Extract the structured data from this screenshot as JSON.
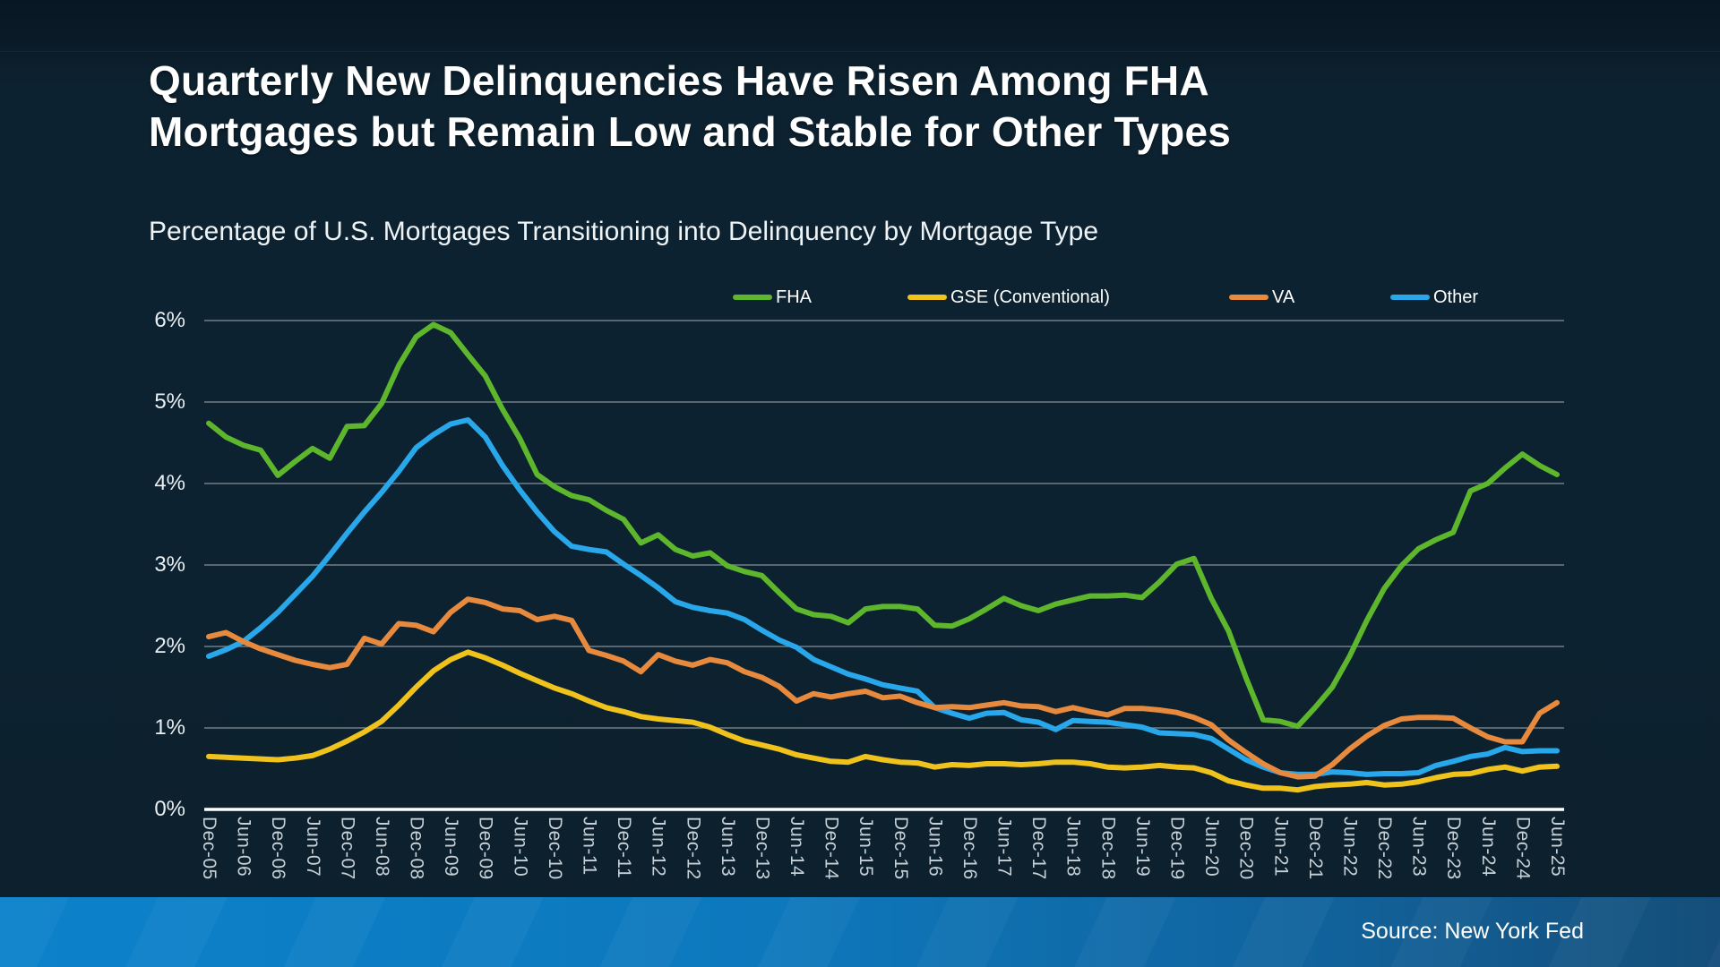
{
  "page": {
    "title_line1": "Quarterly New Delinquencies Have Risen Among FHA",
    "title_line2": "Mortgages but Remain Low and Stable for Other Types",
    "subtitle": "Percentage of U.S. Mortgages Transitioning into Delinquency by Mortgage Type",
    "source": "Source: New York Fed"
  },
  "chart_data": {
    "type": "line",
    "title": "Quarterly New Delinquencies Have Risen Among FHA Mortgages but Remain Low and Stable for Other Types",
    "subtitle": "Percentage of U.S. Mortgages Transitioning into Delinquency by Mortgage Type",
    "unit": "percent",
    "ylim": [
      0,
      6
    ],
    "grid": "horizontal",
    "legend_position": "top",
    "y_tick_labels": [
      "0%",
      "1%",
      "2%",
      "3%",
      "4%",
      "5%",
      "6%"
    ],
    "x_tick_labels": [
      "Dec-05",
      "Jun-06",
      "Dec-06",
      "Jun-07",
      "Dec-07",
      "Jun-08",
      "Dec-08",
      "Jun-09",
      "Dec-09",
      "Jun-10",
      "Dec-10",
      "Jun-11",
      "Dec-11",
      "Jun-12",
      "Dec-12",
      "Jun-13",
      "Dec-13",
      "Jun-14",
      "Dec-14",
      "Jun-15",
      "Dec-15",
      "Jun-16",
      "Dec-16",
      "Jun-17",
      "Dec-17",
      "Jun-18",
      "Dec-18",
      "Jun-19",
      "Dec-19",
      "Jun-20",
      "Dec-20",
      "Jun-21",
      "Dec-21",
      "Jun-22",
      "Dec-22",
      "Jun-23",
      "Dec-23",
      "Jun-24",
      "Dec-24",
      "Jun-25"
    ],
    "points_per_tick": 2,
    "x_frequency": "quarterly",
    "series": [
      {
        "name": "FHA",
        "color": "#5db62c",
        "values": [
          4.74,
          4.57,
          4.47,
          4.41,
          4.1,
          4.27,
          4.43,
          4.31,
          4.7,
          4.71,
          4.98,
          5.45,
          5.8,
          5.95,
          5.85,
          5.58,
          5.32,
          4.91,
          4.55,
          4.11,
          3.96,
          3.85,
          3.8,
          3.67,
          3.56,
          3.27,
          3.37,
          3.19,
          3.11,
          3.15,
          2.99,
          2.92,
          2.87,
          2.66,
          2.46,
          2.39,
          2.37,
          2.29,
          2.46,
          2.49,
          2.49,
          2.46,
          2.26,
          2.25,
          2.34,
          2.46,
          2.59,
          2.5,
          2.44,
          2.52,
          2.57,
          2.62,
          2.62,
          2.63,
          2.6,
          2.79,
          3.01,
          3.08,
          2.59,
          2.19,
          1.62,
          1.1,
          1.08,
          1.02,
          1.25,
          1.5,
          1.88,
          2.32,
          2.71,
          2.99,
          3.2,
          3.31,
          3.4,
          3.91,
          4.0,
          4.19,
          4.36,
          4.22,
          4.11
        ]
      },
      {
        "name": "GSE (Conventional)",
        "color": "#efc31c",
        "values": [
          0.65,
          0.64,
          0.63,
          0.62,
          0.61,
          0.63,
          0.66,
          0.74,
          0.84,
          0.95,
          1.08,
          1.28,
          1.5,
          1.7,
          1.84,
          1.93,
          1.86,
          1.77,
          1.67,
          1.58,
          1.49,
          1.42,
          1.33,
          1.25,
          1.2,
          1.14,
          1.11,
          1.09,
          1.07,
          1.01,
          0.92,
          0.84,
          0.79,
          0.74,
          0.67,
          0.63,
          0.59,
          0.58,
          0.65,
          0.61,
          0.58,
          0.57,
          0.52,
          0.55,
          0.54,
          0.56,
          0.56,
          0.55,
          0.56,
          0.58,
          0.58,
          0.56,
          0.52,
          0.51,
          0.52,
          0.54,
          0.52,
          0.51,
          0.45,
          0.35,
          0.3,
          0.26,
          0.26,
          0.24,
          0.28,
          0.3,
          0.31,
          0.33,
          0.3,
          0.31,
          0.34,
          0.39,
          0.43,
          0.44,
          0.49,
          0.52,
          0.47,
          0.52,
          0.53
        ]
      },
      {
        "name": "VA",
        "color": "#e78a3e",
        "values": [
          2.12,
          2.17,
          2.06,
          1.97,
          1.9,
          1.83,
          1.78,
          1.74,
          1.78,
          2.1,
          2.03,
          2.28,
          2.26,
          2.18,
          2.42,
          2.58,
          2.54,
          2.46,
          2.44,
          2.33,
          2.37,
          2.32,
          1.95,
          1.89,
          1.82,
          1.69,
          1.9,
          1.82,
          1.77,
          1.84,
          1.8,
          1.69,
          1.62,
          1.51,
          1.33,
          1.42,
          1.38,
          1.42,
          1.45,
          1.37,
          1.39,
          1.31,
          1.25,
          1.26,
          1.25,
          1.28,
          1.31,
          1.27,
          1.26,
          1.2,
          1.25,
          1.2,
          1.16,
          1.24,
          1.24,
          1.22,
          1.19,
          1.13,
          1.04,
          0.85,
          0.7,
          0.56,
          0.45,
          0.4,
          0.41,
          0.55,
          0.74,
          0.9,
          1.03,
          1.11,
          1.13,
          1.13,
          1.12,
          1.0,
          0.89,
          0.83,
          0.83,
          1.18,
          1.31
        ]
      },
      {
        "name": "Other",
        "color": "#28a7ea",
        "values": [
          1.88,
          1.96,
          2.06,
          2.23,
          2.42,
          2.64,
          2.86,
          3.12,
          3.39,
          3.65,
          3.89,
          4.15,
          4.44,
          4.6,
          4.73,
          4.78,
          4.57,
          4.22,
          3.92,
          3.65,
          3.41,
          3.23,
          3.19,
          3.16,
          3.01,
          2.87,
          2.72,
          2.55,
          2.48,
          2.44,
          2.41,
          2.33,
          2.2,
          2.08,
          1.99,
          1.84,
          1.75,
          1.66,
          1.6,
          1.53,
          1.49,
          1.45,
          1.25,
          1.18,
          1.12,
          1.18,
          1.19,
          1.1,
          1.07,
          0.98,
          1.09,
          1.08,
          1.07,
          1.04,
          1.01,
          0.94,
          0.93,
          0.92,
          0.87,
          0.74,
          0.61,
          0.52,
          0.45,
          0.43,
          0.43,
          0.46,
          0.45,
          0.43,
          0.44,
          0.44,
          0.45,
          0.54,
          0.59,
          0.65,
          0.68,
          0.76,
          0.71,
          0.72,
          0.72
        ]
      }
    ]
  }
}
